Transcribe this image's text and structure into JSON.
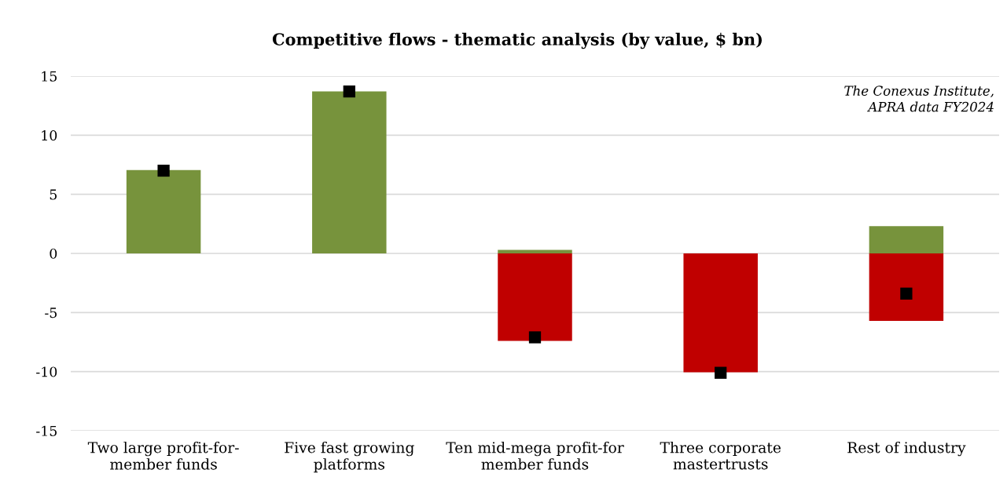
{
  "chart_data": {
    "type": "bar",
    "title": "Competitive flows - thematic analysis (by value, $ bn)",
    "categories": [
      "Two large profit-for-\nmember funds",
      "Five fast growing\nplatforms",
      "Ten mid-mega profit-for\nmember funds",
      "Three corporate\nmastertrusts",
      "Rest of industry"
    ],
    "stacked": true,
    "series": [
      {
        "color": "#77933c",
        "values": [
          7.05,
          13.7,
          0.3,
          null,
          2.3
        ]
      },
      {
        "color": "#c00000",
        "values": [
          null,
          null,
          -7.4,
          -10.05,
          -5.7
        ]
      },
      {
        "type": "scatter",
        "color": "#000000",
        "marker": "square",
        "values": [
          7.0,
          13.7,
          -7.1,
          -10.1,
          -3.4
        ]
      }
    ],
    "ylim": [
      -15,
      15
    ],
    "yticks": [
      -15,
      -10,
      -5,
      0,
      5,
      10,
      15
    ],
    "grid": "y",
    "legend": false,
    "annotations": [
      "The Conexus Institute,\nAPRA data FY2024"
    ]
  }
}
